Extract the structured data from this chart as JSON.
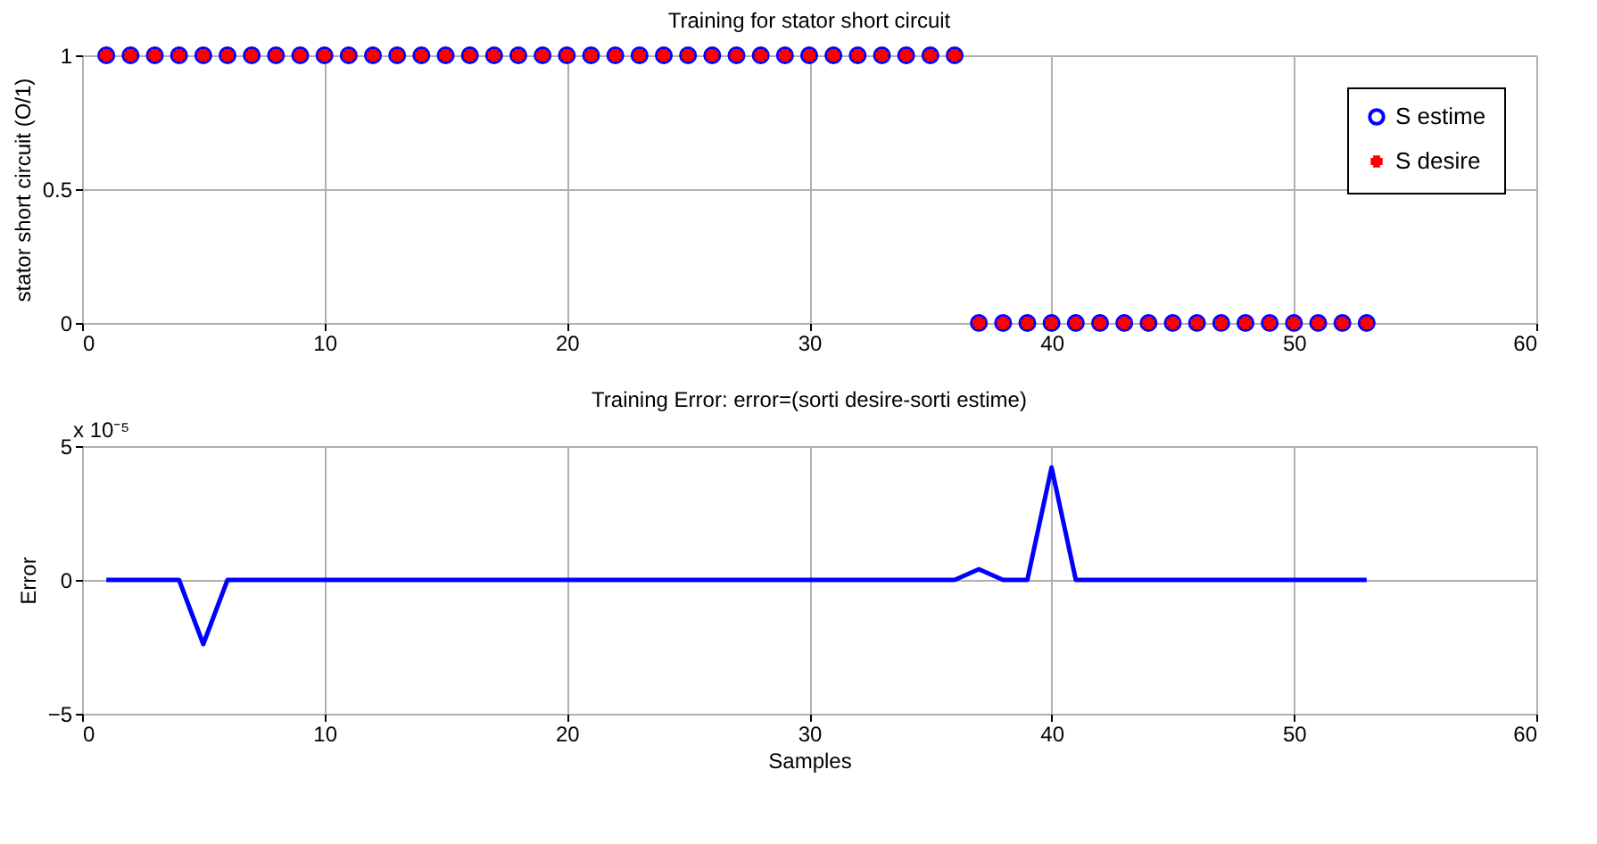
{
  "chart_data": [
    {
      "type": "scatter",
      "title": "Training for stator short circuit",
      "ylabel": "stator short circuit (O/1)",
      "x": [
        1,
        2,
        3,
        4,
        5,
        6,
        7,
        8,
        9,
        10,
        11,
        12,
        13,
        14,
        15,
        16,
        17,
        18,
        19,
        20,
        21,
        22,
        23,
        24,
        25,
        26,
        27,
        28,
        29,
        30,
        31,
        32,
        33,
        34,
        35,
        36,
        37,
        38,
        39,
        40,
        41,
        42,
        43,
        44,
        45,
        46,
        47,
        48,
        49,
        50,
        51,
        52,
        53
      ],
      "series": [
        {
          "name": "S estime",
          "color": "#0000ff",
          "marker": "circle",
          "values": [
            1,
            1,
            1,
            1,
            1,
            1,
            1,
            1,
            1,
            1,
            1,
            1,
            1,
            1,
            1,
            1,
            1,
            1,
            1,
            1,
            1,
            1,
            1,
            1,
            1,
            1,
            1,
            1,
            1,
            1,
            1,
            1,
            1,
            1,
            1,
            1,
            0,
            0,
            0,
            0,
            0,
            0,
            0,
            0,
            0,
            0,
            0,
            0,
            0,
            0,
            0,
            0,
            0
          ]
        },
        {
          "name": "S desire",
          "color": "#ff0000",
          "marker": "cross",
          "values": [
            1,
            1,
            1,
            1,
            1,
            1,
            1,
            1,
            1,
            1,
            1,
            1,
            1,
            1,
            1,
            1,
            1,
            1,
            1,
            1,
            1,
            1,
            1,
            1,
            1,
            1,
            1,
            1,
            1,
            1,
            1,
            1,
            1,
            1,
            1,
            1,
            0,
            0,
            0,
            0,
            0,
            0,
            0,
            0,
            0,
            0,
            0,
            0,
            0,
            0,
            0,
            0,
            0
          ]
        }
      ],
      "xlim": [
        0,
        60
      ],
      "xticks": [
        0,
        10,
        20,
        30,
        40,
        50,
        60
      ],
      "ylim": [
        0,
        1
      ],
      "yticks": [
        0,
        0.5,
        1
      ],
      "grid": true,
      "legend": "top right"
    },
    {
      "type": "line",
      "title": "Training Error: error=(sorti desire-sorti estime)",
      "xlabel": "Samples",
      "ylabel": "Error",
      "x": [
        1,
        2,
        3,
        4,
        5,
        6,
        7,
        8,
        9,
        10,
        11,
        12,
        13,
        14,
        15,
        16,
        17,
        18,
        19,
        20,
        21,
        22,
        23,
        24,
        25,
        26,
        27,
        28,
        29,
        30,
        31,
        32,
        33,
        34,
        35,
        36,
        37,
        38,
        39,
        40,
        41,
        42,
        43,
        44,
        45,
        46,
        47,
        48,
        49,
        50,
        51,
        52,
        53
      ],
      "series": [
        {
          "color": "#0000ff",
          "values": [
            0,
            0,
            0,
            0,
            -2.4,
            0,
            0,
            0,
            0,
            0,
            0,
            0,
            0,
            0,
            0,
            0,
            0,
            0,
            0,
            0,
            0,
            0,
            0,
            0,
            0,
            0,
            0,
            0,
            0,
            0,
            0,
            0,
            0,
            0,
            0,
            0,
            0.4,
            0,
            0,
            4.2,
            0,
            0,
            0,
            0,
            0,
            0,
            0,
            0,
            0,
            0,
            0,
            0,
            0
          ]
        }
      ],
      "xlim": [
        0,
        60
      ],
      "xticks": [
        0,
        10,
        20,
        30,
        40,
        50,
        60
      ],
      "ylim": [
        -5,
        5
      ],
      "yticks": [
        -5,
        0,
        5
      ],
      "grid": true,
      "annotations": [
        "x 10⁻⁵"
      ]
    }
  ]
}
